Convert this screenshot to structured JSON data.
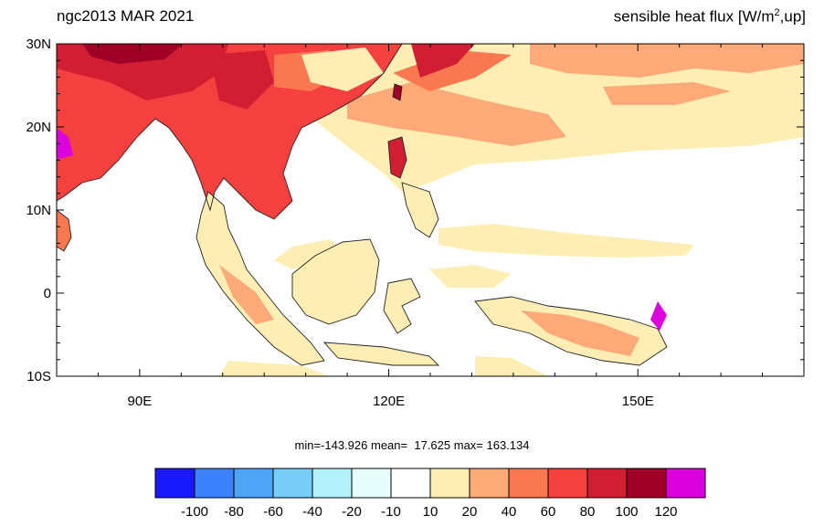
{
  "header": {
    "left_title": "ngc2013 MAR 2021",
    "right_title_prefix": "sensible heat flux [W/m",
    "right_title_sup": "2",
    "right_title_suffix": ",up]"
  },
  "axes": {
    "lat_labels": [
      "30N",
      "20N",
      "10N",
      "0",
      "10S"
    ],
    "lon_labels": [
      "90E",
      "120E",
      "150E"
    ]
  },
  "stats": {
    "min": "min=-143.926",
    "mean": "mean=  17.625",
    "max": "max= 163.134"
  },
  "colorbar": {
    "labels": [
      "-100",
      "-80",
      "-60",
      "-40",
      "-20",
      "-10",
      "10",
      "20",
      "40",
      "60",
      "80",
      "100",
      "120"
    ],
    "colors": [
      "#1a1aff",
      "#3c82ff",
      "#4fa5f5",
      "#78cdf8",
      "#b4f0fa",
      "#e6fffd",
      "#ffffff",
      "#feeeb4",
      "#fdaa78",
      "#fa7850",
      "#f54040",
      "#d21e32",
      "#a00028",
      "#dc00dc"
    ]
  }
}
